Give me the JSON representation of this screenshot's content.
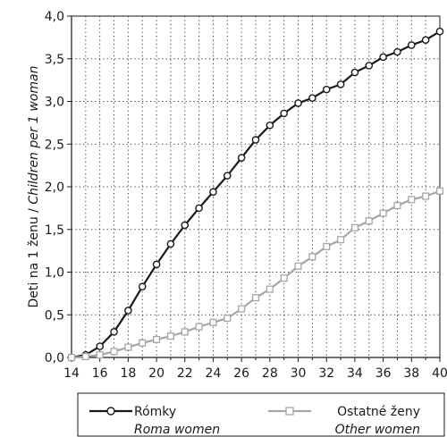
{
  "chart_data": {
    "type": "line",
    "ylabel": "Deti na 1 ženu",
    "ylabel_en": "Children per 1 woman",
    "ylabel_sep": " / ",
    "xlim": [
      14,
      40
    ],
    "ylim": [
      0,
      4
    ],
    "xticks": [
      "14",
      "16",
      "18",
      "20",
      "22",
      "24",
      "26",
      "28",
      "30",
      "32",
      "34",
      "36",
      "38",
      "40"
    ],
    "yticks": [
      "0,0",
      "0,5",
      "1,0",
      "1,5",
      "2,0",
      "2,5",
      "3,0",
      "3,5",
      "4,0"
    ],
    "grid": true,
    "legend_position": "bottom",
    "x": [
      14,
      15,
      16,
      17,
      18,
      19,
      20,
      21,
      22,
      23,
      24,
      25,
      26,
      27,
      28,
      29,
      30,
      31,
      32,
      33,
      34,
      35,
      36,
      37,
      38,
      39,
      40
    ],
    "series": [
      {
        "name": "Rómky",
        "name_en": "Roma women",
        "color": "#1a1a1a",
        "marker": "circle",
        "values": [
          0.0,
          0.03,
          0.13,
          0.3,
          0.55,
          0.83,
          1.09,
          1.33,
          1.55,
          1.75,
          1.94,
          2.13,
          2.34,
          2.55,
          2.72,
          2.86,
          2.98,
          3.04,
          3.14,
          3.2,
          3.34,
          3.42,
          3.52,
          3.58,
          3.66,
          3.72,
          3.82
        ]
      },
      {
        "name": "Ostatné ženy",
        "name_en": "Other women",
        "color": "#a6a6a6",
        "marker": "square",
        "values": [
          0.0,
          0.01,
          0.03,
          0.07,
          0.12,
          0.17,
          0.21,
          0.25,
          0.3,
          0.36,
          0.41,
          0.46,
          0.57,
          0.7,
          0.8,
          0.93,
          1.07,
          1.18,
          1.3,
          1.38,
          1.52,
          1.6,
          1.69,
          1.78,
          1.85,
          1.89,
          1.95
        ]
      }
    ]
  }
}
